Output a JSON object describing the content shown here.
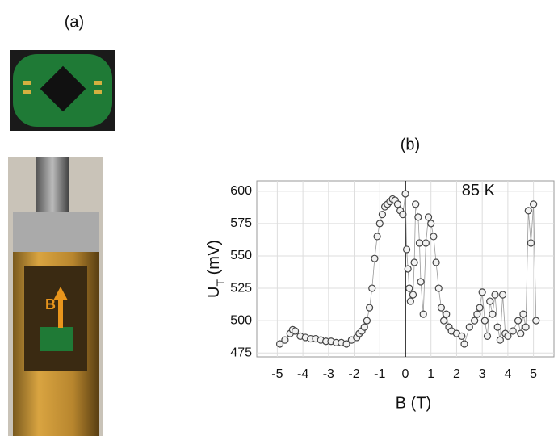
{
  "panel_labels": [
    "(a)",
    "(b)"
  ],
  "chart_data": {
    "type": "line",
    "xlabel": "B (T)",
    "ylabel": [
      "U",
      "T",
      " (mV)"
    ],
    "annotation": "85 K",
    "xlim": [
      -5.8,
      5.8
    ],
    "ylim": [
      472,
      608
    ],
    "xticks": [
      -5,
      -4,
      -3,
      -2,
      -1,
      0,
      1,
      2,
      3,
      4,
      5
    ],
    "yticks": [
      475,
      500,
      525,
      550,
      575,
      600
    ],
    "grid": true,
    "color": "#444444",
    "x": [
      -4.9,
      -4.7,
      -4.5,
      -4.4,
      -4.3,
      -4.1,
      -3.9,
      -3.7,
      -3.5,
      -3.3,
      -3.1,
      -2.9,
      -2.7,
      -2.5,
      -2.3,
      -2.1,
      -1.9,
      -1.8,
      -1.7,
      -1.6,
      -1.5,
      -1.4,
      -1.3,
      -1.2,
      -1.1,
      -1.0,
      -0.9,
      -0.8,
      -0.7,
      -0.6,
      -0.5,
      -0.4,
      -0.3,
      -0.2,
      -0.1,
      0,
      0.05,
      0.1,
      0.15,
      0.2,
      0.3,
      0.35,
      0.4,
      0.5,
      0.55,
      0.6,
      0.7,
      0.8,
      0.9,
      1.0,
      1.1,
      1.2,
      1.3,
      1.4,
      1.5,
      1.6,
      1.7,
      1.8,
      2.0,
      2.2,
      2.3,
      2.5,
      2.7,
      2.8,
      2.9,
      3.0,
      3.1,
      3.2,
      3.3,
      3.4,
      3.5,
      3.6,
      3.7,
      3.8,
      3.9,
      4.0,
      4.2,
      4.4,
      4.5,
      4.6,
      4.7,
      4.8,
      4.9,
      5.0,
      5.1
    ],
    "values": [
      482,
      485,
      490,
      493,
      492,
      488,
      487,
      486,
      486,
      485,
      484,
      484,
      483,
      483,
      482,
      485,
      487,
      490,
      492,
      495,
      500,
      510,
      525,
      548,
      565,
      575,
      582,
      588,
      590,
      592,
      594,
      593,
      590,
      585,
      582,
      598,
      555,
      540,
      525,
      515,
      520,
      545,
      590,
      580,
      560,
      530,
      505,
      560,
      580,
      575,
      565,
      545,
      525,
      510,
      500,
      505,
      495,
      492,
      490,
      488,
      482,
      495,
      500,
      505,
      510,
      522,
      500,
      488,
      515,
      505,
      520,
      495,
      485,
      520,
      490,
      488,
      492,
      500,
      490,
      505,
      495,
      585,
      560,
      590,
      500
    ]
  }
}
